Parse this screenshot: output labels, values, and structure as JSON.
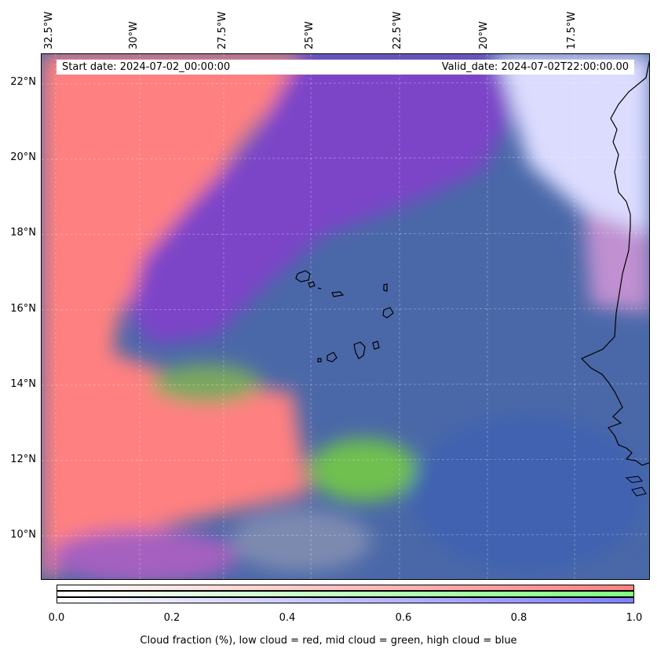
{
  "header": {
    "start_date": "Start date: 2024-07-02_00:00:00",
    "valid_date": "Valid_date: 2024-07-02T22:00:00.00"
  },
  "axes": {
    "lon_ticks": [
      "32.5°W",
      "30°W",
      "27.5°W",
      "25°W",
      "22.5°W",
      "20°W",
      "17.5°W"
    ],
    "lat_ticks": [
      "22°N",
      "20°N",
      "18°N",
      "16°N",
      "14°N",
      "12°N",
      "10°N"
    ]
  },
  "colorbar": {
    "tick_labels": [
      "0.0",
      "0.2",
      "0.4",
      "0.6",
      "0.8",
      "1.0"
    ],
    "label": "Cloud fraction (%), low cloud = red, mid cloud = green, high cloud = blue",
    "colors": {
      "low": "#ff7f7f",
      "mid": "#80ff80",
      "high": "#7f7fff"
    }
  },
  "map_layers": {
    "colors": {
      "low_cloud": "#ff8080",
      "high_cloud_purple": "#8040cc",
      "mid_high_blue": "#4a6aa8",
      "mid_green": "#70c050",
      "clear_pale": "#dcdcff",
      "coast": "#000000"
    }
  }
}
